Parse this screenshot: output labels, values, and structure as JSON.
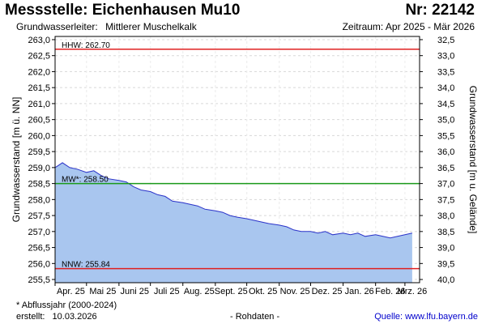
{
  "header": {
    "title": "Messstelle: Eichenhausen Mu10",
    "number": "Nr: 22142",
    "aquifer_label": "Grundwasserleiter:",
    "aquifer_value": "Mittlerer Muschelkalk",
    "period": "Zeitraum: Apr 2025 - Mär 2026"
  },
  "footer": {
    "footnote": "* Abflussjahr (2000-2024)",
    "created_label": "erstellt:",
    "created_date": "10.03.2026",
    "raw": "- Rohdaten -",
    "source": "Quelle: www.lfu.bayern.de"
  },
  "colors": {
    "area": "#a9c6ef",
    "line": "#2b33c9",
    "hhw": "#e02020",
    "mw": "#1a9a1a",
    "nnw": "#e02020",
    "grid": "#d8d8d8"
  },
  "chart_data": {
    "type": "area",
    "ylabel_left": "Grundwasserstand [m ü. NN]",
    "ylabel_right": "Grundwasserstand [m u. Gelände]",
    "ylim": [
      255.4,
      263.1
    ],
    "ylim_right": [
      40.0,
      32.3
    ],
    "left_ticks": [
      "255,5",
      "256,0",
      "256,5",
      "257,0",
      "257,5",
      "258,0",
      "258,5",
      "259,0",
      "259,5",
      "260,0",
      "260,5",
      "261,0",
      "261,5",
      "262,0",
      "262,5",
      "263,0"
    ],
    "right_ticks": [
      "32,5",
      "33,0",
      "33,5",
      "34,0",
      "34,5",
      "35,0",
      "35,5",
      "36,0",
      "36,5",
      "37,0",
      "37,5",
      "38,0",
      "38,5",
      "39,0",
      "39,5",
      "40,0"
    ],
    "x_ticks": [
      "Apr. 25",
      "Mai 25",
      "Juni 25",
      "Juli 25",
      "Aug. 25",
      "Sept. 25",
      "Okt. 25",
      "Nov. 25",
      "Dez. 25",
      "Jan. 26",
      "Feb. 26",
      "Mrz. 26"
    ],
    "grid": true,
    "reference_lines": [
      {
        "label": "HHW: 262.70",
        "value": 262.7
      },
      {
        "label": "MW*: 258.50",
        "value": 258.5
      },
      {
        "label": "NNW: 255.84",
        "value": 255.84
      }
    ],
    "series": [
      {
        "x": [
          "2025-04-01",
          "2025-04-08",
          "2025-04-15",
          "2025-04-22",
          "2025-05-01",
          "2025-05-08",
          "2025-05-15",
          "2025-05-22",
          "2025-06-01",
          "2025-06-08",
          "2025-06-15",
          "2025-06-22",
          "2025-07-01",
          "2025-07-08",
          "2025-07-15",
          "2025-07-22",
          "2025-08-01",
          "2025-08-08",
          "2025-08-15",
          "2025-08-22",
          "2025-09-01",
          "2025-09-08",
          "2025-09-15",
          "2025-09-22",
          "2025-10-01",
          "2025-10-08",
          "2025-10-15",
          "2025-10-22",
          "2025-11-01",
          "2025-11-08",
          "2025-11-15",
          "2025-11-22",
          "2025-12-01",
          "2025-12-08",
          "2025-12-15",
          "2025-12-22",
          "2026-01-01",
          "2026-01-08",
          "2026-01-15",
          "2026-01-22",
          "2026-02-01",
          "2026-02-08",
          "2026-02-15",
          "2026-02-22",
          "2026-03-01",
          "2026-03-08"
        ],
        "values": [
          259.0,
          259.15,
          259.0,
          258.95,
          258.85,
          258.9,
          258.75,
          258.65,
          258.6,
          258.55,
          258.4,
          258.3,
          258.25,
          258.15,
          258.1,
          257.95,
          257.9,
          257.85,
          257.8,
          257.7,
          257.65,
          257.6,
          257.5,
          257.45,
          257.4,
          257.35,
          257.3,
          257.25,
          257.2,
          257.15,
          257.05,
          257.0,
          257.0,
          256.95,
          257.0,
          256.9,
          256.95,
          256.9,
          256.95,
          256.85,
          256.9,
          256.85,
          256.8,
          256.85,
          256.9,
          256.95
        ]
      }
    ]
  }
}
